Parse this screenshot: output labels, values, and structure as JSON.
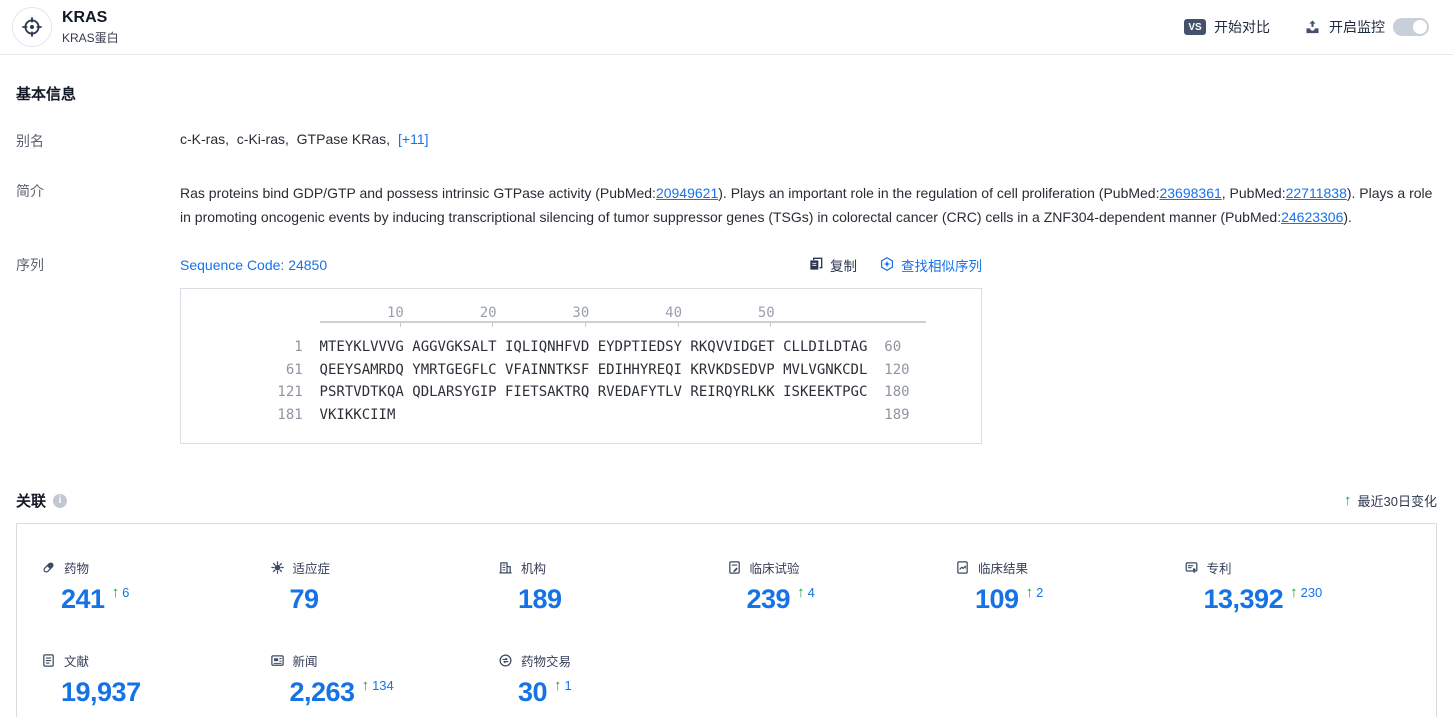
{
  "header": {
    "title": "KRAS",
    "subtitle": "KRAS蛋白",
    "vs_badge": "VS",
    "compare_label": "开始对比",
    "monitor_label": "开启监控",
    "monitor_toggle_state": "off"
  },
  "basic_info": {
    "section_title": "基本信息",
    "alias_label": "别名",
    "aliases": "c-K-ras,  c-Ki-ras,  GTPase KRas,",
    "alias_more": "[+11]",
    "intro_label": "简介",
    "intro_segments": [
      {
        "type": "text",
        "value": "Ras proteins bind GDP/GTP and possess intrinsic GTPase activity (PubMed:"
      },
      {
        "type": "link",
        "value": "20949621"
      },
      {
        "type": "text",
        "value": "). Plays an important role in the regulation of cell proliferation (PubMed:"
      },
      {
        "type": "link",
        "value": "23698361"
      },
      {
        "type": "text",
        "value": ", PubMed:"
      },
      {
        "type": "link",
        "value": "22711838"
      },
      {
        "type": "text",
        "value": "). Plays a role in promoting oncogenic events by inducing transcriptional silencing of tumor suppressor genes (TSGs) in colorectal cancer (CRC) cells in a ZNF304-dependent manner (PubMed:"
      },
      {
        "type": "link",
        "value": "24623306"
      },
      {
        "type": "text",
        "value": ")."
      }
    ],
    "sequence_label": "序列",
    "sequence_code": "Sequence Code: 24850",
    "copy_label": "复制",
    "find_similar_label": "查找相似序列",
    "ruler_ticks": [
      "10",
      "20",
      "30",
      "40",
      "50"
    ],
    "sequence_rows": [
      {
        "start": "1",
        "seq": "MTEYKLVVVG AGGVGKSALT IQLIQNHFVD EYDPTIEDSY RKQVVIDGET CLLDILDTAG",
        "end": "60"
      },
      {
        "start": "61",
        "seq": "QEEYSAMRDQ YMRTGEGFLC VFAINNTKSF EDIHHYREQI KRVKDSEDVP MVLVGNKCDL",
        "end": "120"
      },
      {
        "start": "121",
        "seq": "PSRTVDTKQA QDLARSYGIP FIETSAKTRQ RVEDAFYTLV REIRQYRLKK ISKEEKTPGC",
        "end": "180"
      },
      {
        "start": "181",
        "seq": "VKIKKCIIM",
        "end": "189"
      }
    ]
  },
  "associations": {
    "section_title": "关联",
    "recent_change_label": "最近30日变化",
    "stats": [
      {
        "icon": "capsule-icon",
        "label": "药物",
        "value": "241",
        "delta": "6"
      },
      {
        "icon": "virus-icon",
        "label": "适应症",
        "value": "79",
        "delta": null
      },
      {
        "icon": "organization-icon",
        "label": "机构",
        "value": "189",
        "delta": null
      },
      {
        "icon": "clinical-trial-icon",
        "label": "临床试验",
        "value": "239",
        "delta": "4"
      },
      {
        "icon": "clinical-result-icon",
        "label": "临床结果",
        "value": "109",
        "delta": "2"
      },
      {
        "icon": "patent-icon",
        "label": "专利",
        "value": "13,392",
        "delta": "230"
      },
      {
        "icon": "literature-icon",
        "label": "文献",
        "value": "19,937",
        "delta": null
      },
      {
        "icon": "news-icon",
        "label": "新闻",
        "value": "2,263",
        "delta": "134"
      },
      {
        "icon": "drug-deal-icon",
        "label": "药物交易",
        "value": "30",
        "delta": "1"
      }
    ]
  },
  "colors": {
    "accent_blue": "#1672ec",
    "stat_blue": "#1673e6",
    "up_green": "#18a34a",
    "icon_navy": "#3c4a63",
    "border_gray": "#d8dce2"
  }
}
